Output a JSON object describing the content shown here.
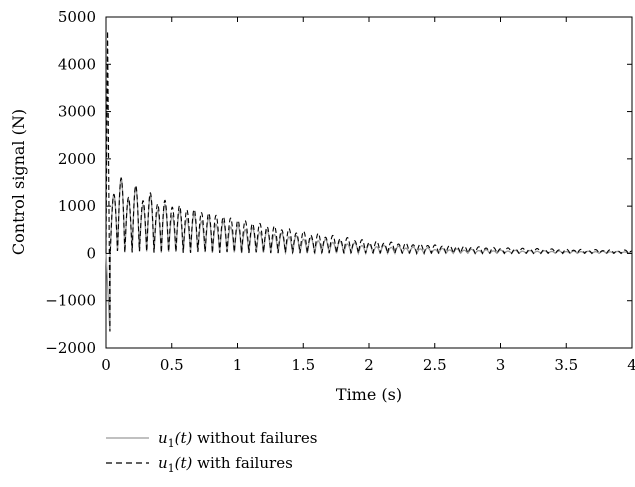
{
  "chart_data": {
    "type": "line",
    "xlabel": "Time (s)",
    "ylabel": "Control signal (N)",
    "xlim": [
      0,
      4
    ],
    "ylim": [
      -2000,
      5000
    ],
    "xticks": [
      0,
      0.5,
      1,
      1.5,
      2,
      2.5,
      3,
      3.5,
      4
    ],
    "xtick_labels": [
      "0",
      "0.5",
      "1",
      "1.5",
      "2",
      "2.5",
      "3",
      "3.5",
      "4"
    ],
    "yticks": [
      -2000,
      -1000,
      0,
      1000,
      2000,
      3000,
      4000,
      5000
    ],
    "ytick_labels": [
      "−2000",
      "−1000",
      "0",
      "1000",
      "2000",
      "3000",
      "4000",
      "5000"
    ],
    "grid": false,
    "legend_position": "bottom-below-plot",
    "series": [
      {
        "name_math": "u",
        "name_sub": "1",
        "name_arg": "(t)",
        "name_text": "without failures",
        "color": "#9a9a9a",
        "dash": "solid",
        "oscillation_period_s": 0.111,
        "peaks_positive": [
          [
            0.06,
            1250
          ],
          [
            0.5,
            800
          ],
          [
            1.0,
            530
          ],
          [
            1.5,
            300
          ],
          [
            2.0,
            150
          ],
          [
            2.5,
            80
          ],
          [
            3.0,
            50
          ],
          [
            3.5,
            40
          ],
          [
            4.0,
            30
          ]
        ],
        "peaks_negative": [
          [
            0.11,
            -1600
          ],
          [
            0.5,
            -950
          ],
          [
            1.0,
            -600
          ],
          [
            1.5,
            -350
          ],
          [
            2.0,
            -190
          ],
          [
            2.5,
            -110
          ],
          [
            3.0,
            -70
          ],
          [
            3.5,
            -50
          ],
          [
            4.0,
            -40
          ]
        ]
      },
      {
        "name_math": "u",
        "name_sub": "1",
        "name_arg": "(t)",
        "name_text": "with failures",
        "color": "#000000",
        "dash": "dashed",
        "oscillation_period_s": 0.111,
        "initial_spike": [
          [
            0.0,
            0
          ],
          [
            0.012,
            4700
          ],
          [
            0.03,
            -1650
          ]
        ],
        "peaks_positive": [
          [
            0.06,
            1250
          ],
          [
            0.5,
            980
          ],
          [
            1.0,
            720
          ],
          [
            1.5,
            470
          ],
          [
            2.0,
            270
          ],
          [
            2.5,
            180
          ],
          [
            3.0,
            120
          ],
          [
            3.5,
            90
          ],
          [
            4.0,
            70
          ]
        ],
        "peaks_negative": [
          [
            0.11,
            -1600
          ],
          [
            0.5,
            -1050
          ],
          [
            1.0,
            -700
          ],
          [
            1.5,
            -400
          ],
          [
            2.0,
            -230
          ],
          [
            2.5,
            -160
          ],
          [
            3.0,
            -100
          ],
          [
            3.5,
            -70
          ],
          [
            4.0,
            -50
          ]
        ]
      }
    ]
  }
}
